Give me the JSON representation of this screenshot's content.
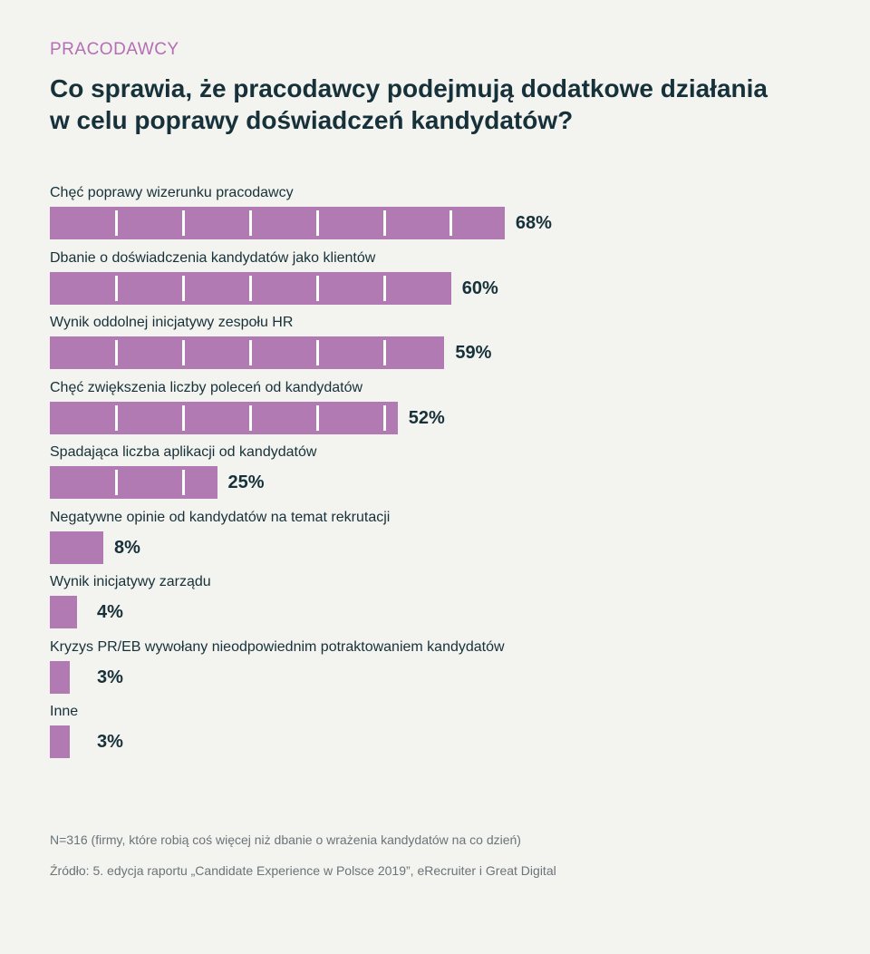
{
  "kicker": "PRACODAWCY",
  "title": "Co sprawia, że pracodawcy podejmują dodatkowe działania w celu poprawy doświadczeń kandydatów?",
  "footnote": "N=316 (firmy, które robią coś więcej niż dbanie o wrażenia kandydatów na co dzień)",
  "source": "Źródło: 5. edycja raportu „Candidate Experience w Polsce 2019”, eRecruiter i Great Digital",
  "colors": {
    "bar": "#b27ab3",
    "text": "#17313a",
    "kicker": "#b46fb4",
    "background": "#f3f3ef"
  },
  "chart_data": {
    "type": "bar",
    "orientation": "horizontal",
    "title": "Co sprawia, że pracodawcy podejmują dodatkowe działania w celu poprawy doświadczeń kandydatów?",
    "xlabel": "",
    "ylabel": "",
    "xlim": [
      0,
      100
    ],
    "grid": false,
    "categories": [
      "Chęć poprawy wizerunku pracodawcy",
      "Dbanie o doświadczenia kandydatów jako klientów",
      "Wynik oddolnej inicjatywy zespołu HR",
      "Chęć zwiększenia liczby poleceń od kandydatów",
      "Spadająca liczba aplikacji od kandydatów",
      "Negatywne opinie od kandydatów na temat rekrutacji",
      "Wynik inicjatywy zarządu",
      "Kryzys PR/EB wywołany nieodpowiednim potraktowaniem kandydatów",
      "Inne"
    ],
    "values": [
      68,
      60,
      59,
      52,
      25,
      8,
      4,
      3,
      3
    ],
    "value_labels": [
      "68%",
      "60%",
      "59%",
      "52%",
      "25%",
      "8%",
      "4%",
      "3%",
      "3%"
    ]
  }
}
